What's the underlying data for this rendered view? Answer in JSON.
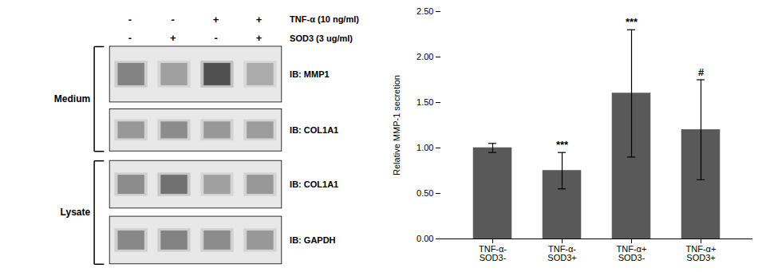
{
  "chart_data": [
    {
      "type": "blot",
      "treatments": [
        {
          "label": "TNF-α (10 ng/ml)",
          "values": [
            "- ",
            "- ",
            "+ ",
            "+ "
          ]
        },
        {
          "label": "SOD3 (3 ug/ml)",
          "values": [
            "- ",
            "+ ",
            "- ",
            "+ "
          ]
        }
      ],
      "rows": [
        "IB: MMP1",
        "IB: COL1A1",
        "IB: COL1A1",
        "IB: GAPDH"
      ],
      "groups": [
        "Medium",
        "Medium",
        "Lysate",
        "Lysate"
      ],
      "cells": [
        [
          0.62,
          0.48,
          0.88,
          0.42
        ],
        [
          0.52,
          0.58,
          0.52,
          0.5
        ],
        [
          0.58,
          0.72,
          0.48,
          0.52
        ],
        [
          0.6,
          0.62,
          0.58,
          0.52
        ]
      ],
      "color": "#e8e8e8"
    },
    {
      "type": "bar",
      "categories": [
        "TNF-α-\nSOD3-",
        "TNF-α-\nSOD3+",
        "TNF-α+\nSOD3-",
        "TNF-α+\nSOD3+"
      ],
      "values": [
        1.0,
        0.75,
        1.6,
        1.2
      ],
      "errors": [
        0.05,
        0.2,
        0.7,
        0.55
      ],
      "significance": [
        null,
        "***",
        "***",
        "#"
      ],
      "color": "#595959",
      "ylabel": "Relative MMP-1 secretion",
      "ylim": [
        0,
        2.5
      ],
      "yticks": [
        {
          "value": 0,
          "label": "0.00"
        },
        {
          "value": 0.5,
          "label": "0.50"
        },
        {
          "value": 1,
          "label": "1.00"
        },
        {
          "value": 1.5,
          "label": "1.50"
        },
        {
          "value": 2,
          "label": "2.00"
        },
        {
          "value": 2.5,
          "label": "2.50"
        }
      ],
      "grid": false
    }
  ]
}
